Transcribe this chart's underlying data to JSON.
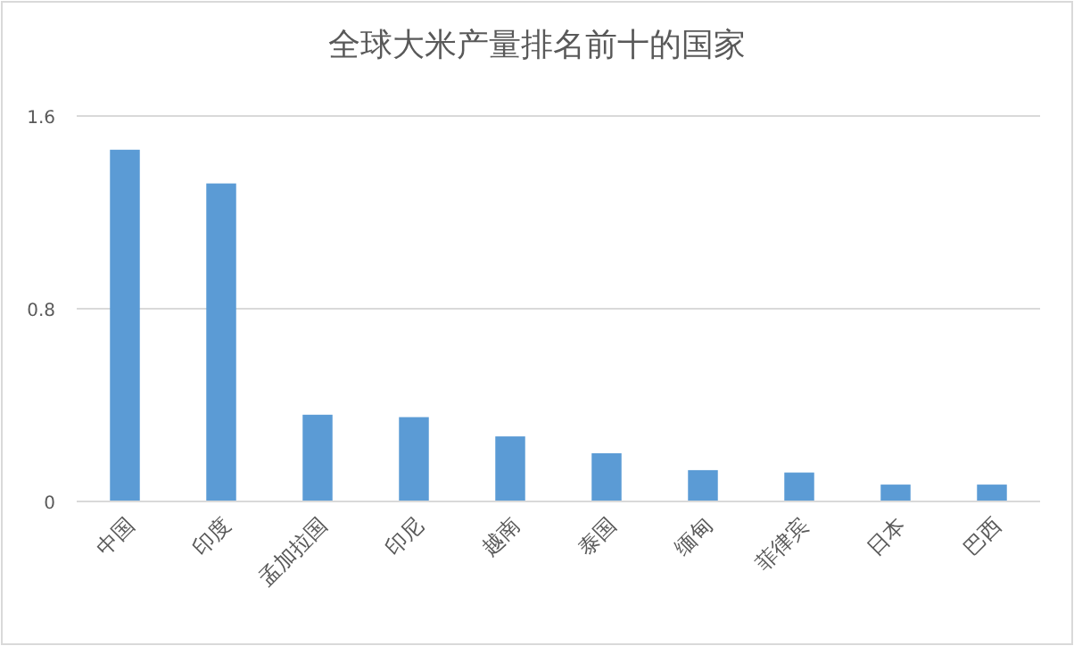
{
  "chart_data": {
    "type": "bar",
    "title": "全球大米产量排名前十的国家",
    "categories": [
      "中国",
      "印度",
      "孟加拉国",
      "印尼",
      "越南",
      "泰国",
      "缅甸",
      "菲律宾",
      "日本",
      "巴西"
    ],
    "values": [
      1.46,
      1.32,
      0.36,
      0.35,
      0.27,
      0.2,
      0.13,
      0.12,
      0.07,
      0.07
    ],
    "color": "#5b9bd5",
    "ylim": [
      0,
      1.6
    ],
    "yticks": [
      0,
      0.8,
      1.6
    ],
    "grid": "y"
  }
}
